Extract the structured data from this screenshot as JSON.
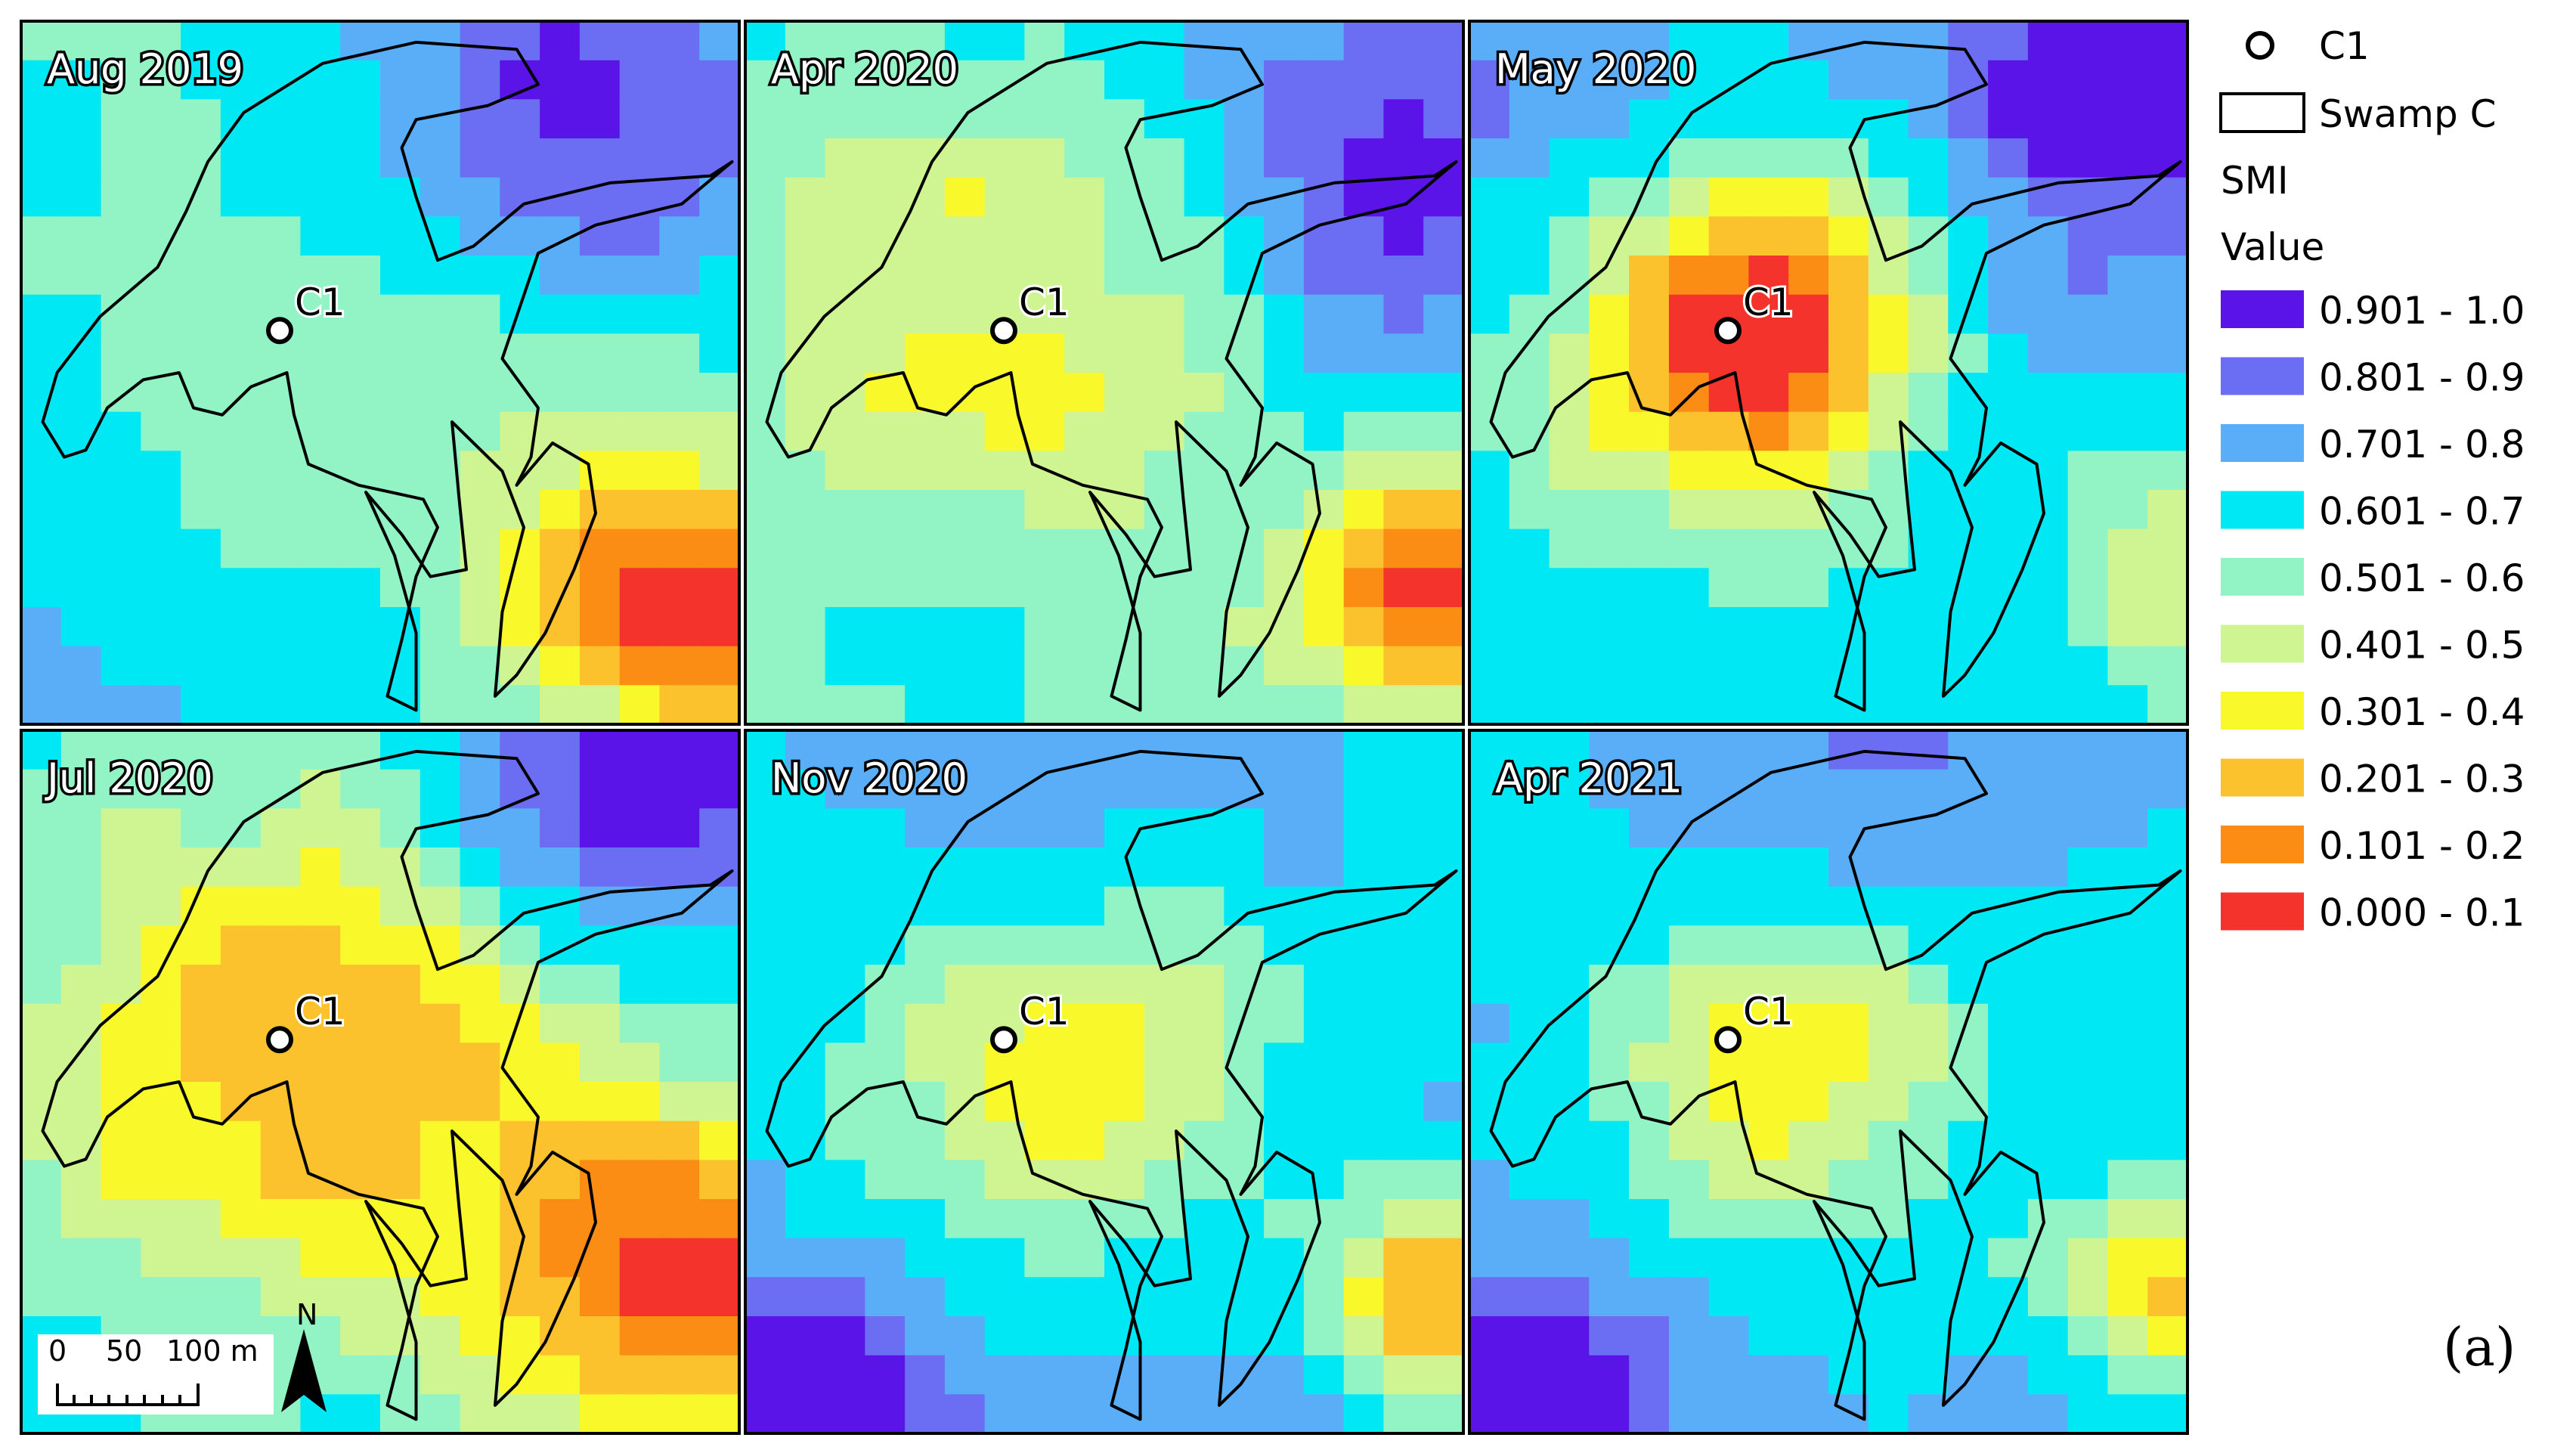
{
  "panels": [
    {
      "title": "Aug 2019",
      "point_label": "C1"
    },
    {
      "title": "Apr 2020",
      "point_label": "C1"
    },
    {
      "title": "May 2020",
      "point_label": "C1"
    },
    {
      "title": "Jul 2020",
      "point_label": "C1"
    },
    {
      "title": "Nov 2020",
      "point_label": "C1"
    },
    {
      "title": "Apr 2021",
      "point_label": "C1"
    }
  ],
  "legend": {
    "point_label": "C1",
    "polygon_label": "Swamp C",
    "layer_label": "SMI",
    "value_label": "Value",
    "classes": [
      {
        "label": "0.901 - 1.0",
        "color": "#5A14E8"
      },
      {
        "label": "0.801 - 0.9",
        "color": "#6B6EF2"
      },
      {
        "label": "0.701 - 0.8",
        "color": "#5AAEF8"
      },
      {
        "label": "0.601 - 0.7",
        "color": "#00E8F4"
      },
      {
        "label": "0.501 - 0.6",
        "color": "#92F3C4"
      },
      {
        "label": "0.401 - 0.5",
        "color": "#CFF592"
      },
      {
        "label": "0.301 - 0.4",
        "color": "#F9F82B"
      },
      {
        "label": "0.201 - 0.3",
        "color": "#FBC22E"
      },
      {
        "label": "0.101 - 0.2",
        "color": "#FB8C14"
      },
      {
        "label": "0.000 - 0.1",
        "color": "#F4342C"
      }
    ]
  },
  "scale_bar": {
    "labels": [
      "0",
      "50",
      "100 m"
    ]
  },
  "north_arrow": {
    "label": "N"
  },
  "panel_letter": "(a)"
}
